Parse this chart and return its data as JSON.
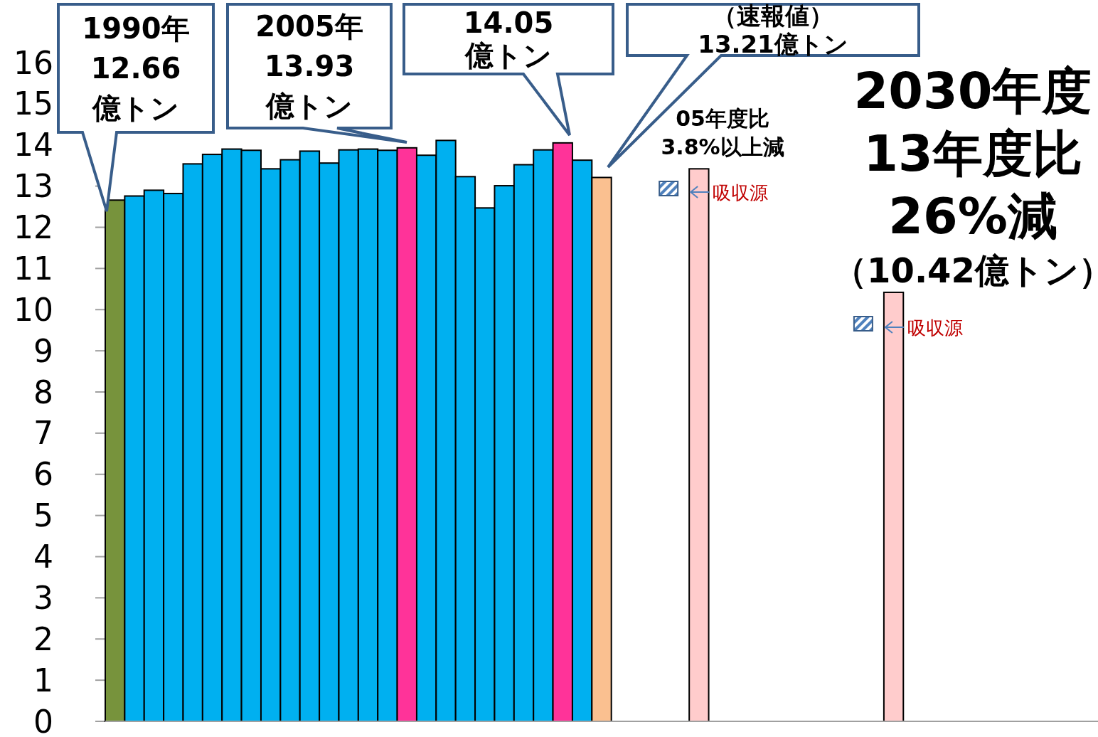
{
  "chart_data": {
    "type": "bar",
    "categories": [
      null,
      null,
      null,
      null,
      null,
      null,
      null,
      null,
      null,
      null,
      null,
      null,
      null,
      null,
      null,
      null,
      null,
      null,
      null,
      null,
      null,
      null,
      null,
      null,
      null,
      null,
      null,
      null,
      null,
      null,
      null,
      null,
      null,
      null,
      null,
      null,
      null,
      null,
      null,
      null,
      null,
      null,
      null,
      null,
      null,
      null,
      null,
      null,
      null,
      null,
      null
    ],
    "values": [
      12.66,
      12.76,
      12.9,
      12.82,
      13.54,
      13.77,
      13.9,
      13.87,
      13.42,
      13.64,
      13.85,
      13.56,
      13.88,
      13.9,
      13.87,
      13.93,
      13.75,
      14.11,
      13.23,
      12.47,
      13.01,
      13.52,
      13.88,
      14.05,
      13.63,
      13.21,
      null,
      null,
      null,
      null,
      13.42,
      null,
      null,
      null,
      null,
      null,
      null,
      null,
      null,
      null,
      10.42,
      null,
      null,
      null,
      null,
      null,
      null,
      null,
      null,
      null,
      null
    ],
    "colors": [
      "#77933c",
      "#00b0f0",
      "#00b0f0",
      "#00b0f0",
      "#00b0f0",
      "#00b0f0",
      "#00b0f0",
      "#00b0f0",
      "#00b0f0",
      "#00b0f0",
      "#00b0f0",
      "#00b0f0",
      "#00b0f0",
      "#00b0f0",
      "#00b0f0",
      "#ff3399",
      "#00b0f0",
      "#00b0f0",
      "#00b0f0",
      "#00b0f0",
      "#00b0f0",
      "#00b0f0",
      "#00b0f0",
      "#ff3399",
      "#00b0f0",
      "#fac090",
      null,
      null,
      null,
      null,
      "#ffcccc",
      null,
      null,
      null,
      null,
      null,
      null,
      null,
      null,
      null,
      "#ffcccc",
      null,
      null,
      null,
      null,
      null,
      null,
      null,
      null,
      null,
      null
    ],
    "ylim": [
      0,
      16
    ],
    "yticks": [
      0,
      1,
      2,
      3,
      4,
      5,
      6,
      7,
      8,
      9,
      10,
      11,
      12,
      13,
      14,
      15,
      16
    ],
    "grid": false,
    "tick_labels": "y",
    "annotations": [
      "1990年\n12.66\n億トン",
      "2005年\n13.93\n億トン",
      "14.05\n億トン",
      "（速報値）\n13.21億トン",
      "05年度比\n3.8%以上減",
      "2030年度\n13年度比\n26%減",
      "（10.42億トン）",
      "吸収源",
      "吸収源"
    ]
  }
}
